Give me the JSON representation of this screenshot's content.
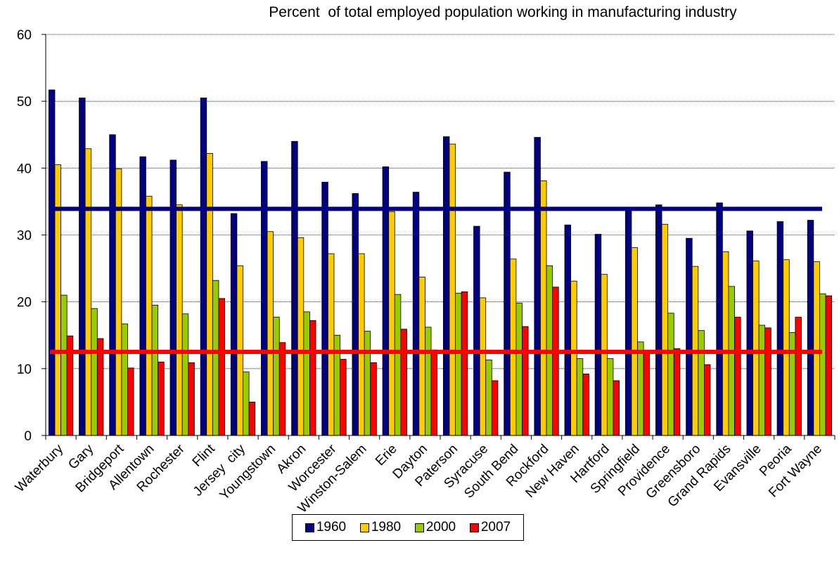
{
  "chart_data": {
    "type": "bar",
    "title": "Percent  of total employed population working in manufacturing industry",
    "ylim": [
      0,
      60
    ],
    "yticks": [
      0,
      10,
      20,
      30,
      40,
      50,
      60
    ],
    "grid": true,
    "legend_position": "bottom",
    "categories": [
      "Waterbury",
      "Gary",
      "Bridgeport",
      "Allentown",
      "Rochester",
      "Flint",
      "Jersey  city",
      "Youngstown",
      "Akron",
      "Worcester",
      "Winston-Salem",
      "Erie",
      "Dayton",
      "Paterson",
      "Syracuse",
      "South Bend",
      "Rockford",
      "New Haven",
      "Hartford",
      "Springfield",
      "Providence",
      "Greensboro",
      "Grand Rapids",
      "Evansville",
      "Peoria",
      "Fort Wayne"
    ],
    "series": [
      {
        "name": "1960",
        "color": "#000080",
        "values": [
          51.7,
          50.5,
          45.0,
          41.7,
          41.2,
          50.5,
          33.2,
          41.0,
          44.0,
          37.9,
          36.2,
          40.2,
          36.4,
          44.7,
          31.3,
          39.4,
          44.6,
          31.5,
          30.1,
          33.8,
          34.5,
          29.5,
          34.8,
          30.6,
          32.0,
          32.2
        ]
      },
      {
        "name": "1980",
        "color": "#FFCC00",
        "values": [
          40.5,
          42.9,
          39.9,
          35.8,
          34.5,
          42.2,
          25.4,
          30.5,
          29.6,
          27.2,
          27.2,
          33.5,
          23.7,
          43.6,
          20.6,
          26.4,
          38.1,
          23.1,
          24.1,
          28.1,
          31.6,
          25.3,
          27.5,
          26.1,
          26.3,
          26.0
        ]
      },
      {
        "name": "2000",
        "color": "#99CC00",
        "values": [
          21.0,
          19.0,
          16.7,
          19.5,
          18.2,
          23.2,
          9.5,
          17.7,
          18.5,
          15.0,
          15.6,
          21.1,
          16.2,
          21.3,
          11.3,
          19.8,
          25.4,
          11.5,
          11.5,
          14.0,
          18.3,
          15.7,
          22.3,
          16.5,
          15.4,
          21.2
        ]
      },
      {
        "name": "2007",
        "color": "#FF0000",
        "values": [
          14.9,
          14.5,
          10.1,
          11.0,
          10.9,
          20.5,
          5.0,
          13.9,
          17.2,
          11.4,
          10.9,
          15.9,
          12.8,
          21.5,
          8.2,
          16.3,
          22.2,
          9.2,
          8.2,
          12.6,
          13.0,
          10.6,
          17.7,
          16.1,
          17.7,
          20.9
        ]
      }
    ],
    "reference_lines": [
      {
        "series": "1960",
        "color": "#000080",
        "value": 33.9
      },
      {
        "series": "2007",
        "color": "#FF0000",
        "value": 12.5
      }
    ]
  }
}
